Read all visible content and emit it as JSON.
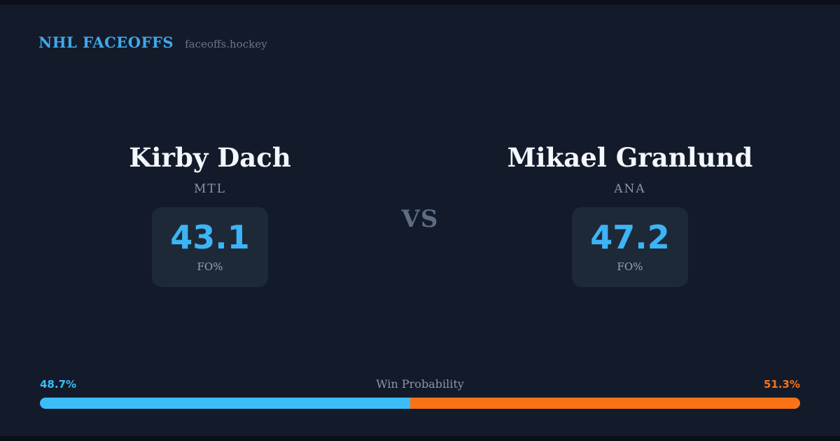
{
  "header": {
    "brand": "NHL FACEOFFS",
    "site": "faceoffs.hockey"
  },
  "matchup": {
    "vs_label": "VS",
    "players": [
      {
        "name": "Kirby Dach",
        "team": "MTL",
        "stat_value": "43.1",
        "stat_label": "FO%"
      },
      {
        "name": "Mikael Granlund",
        "team": "ANA",
        "stat_value": "47.2",
        "stat_label": "FO%"
      }
    ]
  },
  "win_probability": {
    "title": "Win Probability",
    "left_label": "48.7%",
    "right_label": "51.3%",
    "left_value": 48.7,
    "right_value": 51.3,
    "left_color": "#3dbdf8",
    "right_color": "#f97316"
  },
  "colors": {
    "background": "#131b2b",
    "card_box": "#1e2938",
    "accent_blue": "#3db4f5",
    "accent_orange": "#f97316",
    "brand_blue": "#3fa9ec"
  }
}
